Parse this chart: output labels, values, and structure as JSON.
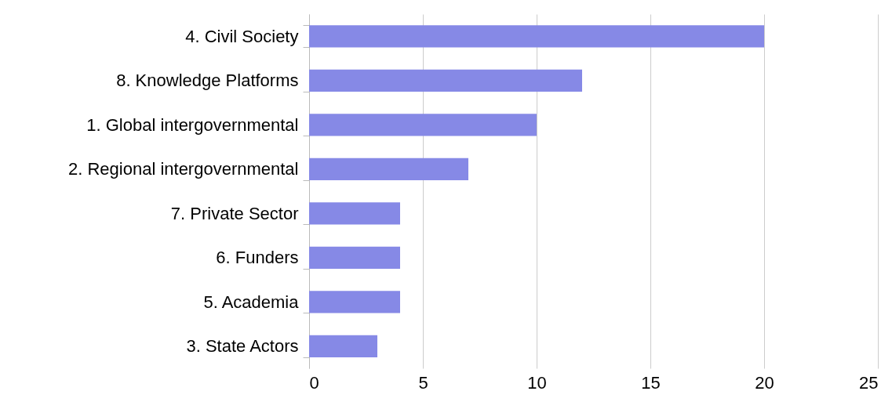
{
  "chart_data": {
    "type": "bar",
    "orientation": "horizontal",
    "categories": [
      "4. Civil Society",
      "8. Knowledge Platforms",
      "1. Global intergovernmental",
      "2. Regional intergovernmental",
      "7. Private Sector",
      "6. Funders",
      "5. Academia",
      "3. State Actors"
    ],
    "values": [
      20,
      12,
      10,
      7,
      4,
      4,
      4,
      3
    ],
    "color": "#8689e6",
    "xlim": [
      0,
      25
    ],
    "xticks": [
      0,
      5,
      10,
      15,
      20,
      25
    ],
    "grid": "x"
  }
}
